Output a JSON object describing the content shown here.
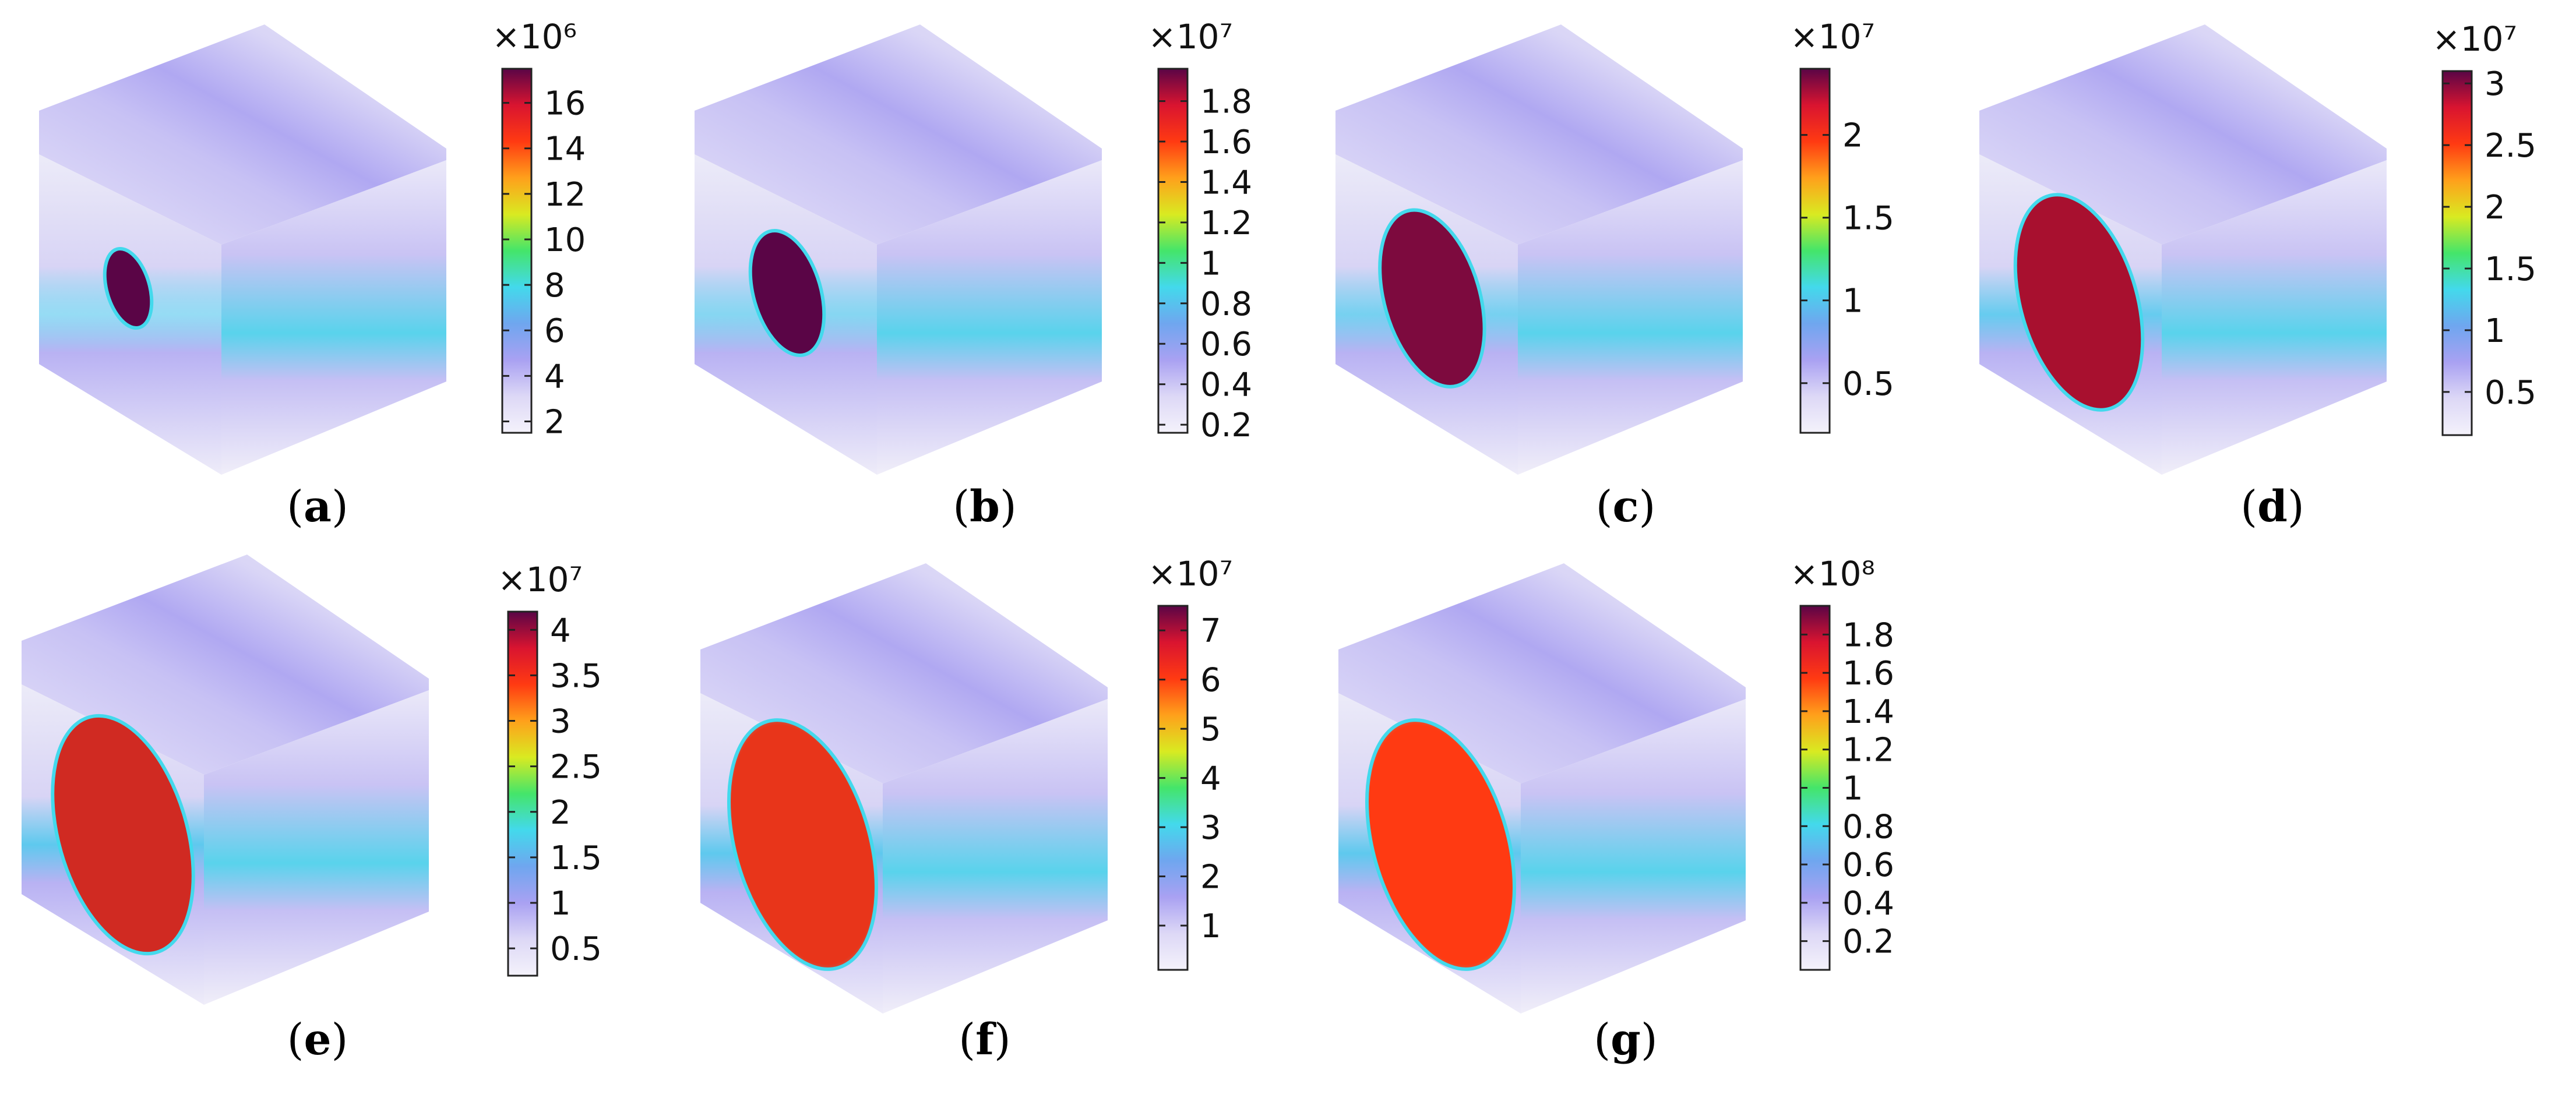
{
  "colormap": {
    "name": "rainbow-light",
    "stops": [
      "#f4f2fb",
      "#ddd8f6",
      "#a9a1f2",
      "#6fa6ef",
      "#43d9ec",
      "#44e56a",
      "#d9ea21",
      "#ffa01b",
      "#ff3a12",
      "#d91430",
      "#5a0546"
    ]
  },
  "panels": [
    {
      "label": "a",
      "colorbar": {
        "exponent": "×10⁶",
        "ticks": [
          "16",
          "14",
          "12",
          "10",
          "8",
          "6",
          "4",
          "2"
        ],
        "tick_values": [
          16,
          14,
          12,
          10,
          8,
          6,
          4,
          2
        ],
        "min": 1.5,
        "max": 17.5
      },
      "ellipse_scale": 0.35,
      "ellipse_fill": "#5a0546"
    },
    {
      "label": "b",
      "colorbar": {
        "exponent": "×10⁷",
        "ticks": [
          "1.8",
          "1.6",
          "1.4",
          "1.2",
          "1",
          "0.8",
          "0.6",
          "0.4",
          "0.2"
        ],
        "tick_values": [
          1.8,
          1.6,
          1.4,
          1.2,
          1,
          0.8,
          0.6,
          0.4,
          0.2
        ],
        "min": 0.16,
        "max": 1.96
      },
      "ellipse_scale": 0.55,
      "ellipse_fill": "#5a0546"
    },
    {
      "label": "c",
      "colorbar": {
        "exponent": "×10⁷",
        "ticks": [
          "2",
          "1.5",
          "1",
          "0.5"
        ],
        "tick_values": [
          2,
          1.5,
          1,
          0.5
        ],
        "min": 0.2,
        "max": 2.4
      },
      "ellipse_scale": 0.78,
      "ellipse_fill": "#7d0a3e"
    },
    {
      "label": "d",
      "colorbar": {
        "exponent": "×10⁷",
        "ticks": [
          "3",
          "2.5",
          "2",
          "1.5",
          "1",
          "0.5"
        ],
        "tick_values": [
          3,
          2.5,
          2,
          1.5,
          1,
          0.5
        ],
        "min": 0.15,
        "max": 3.1
      },
      "ellipse_scale": 0.95,
      "ellipse_fill": "#a8102f"
    },
    {
      "label": "e",
      "colorbar": {
        "exponent": "×10⁷",
        "ticks": [
          "4",
          "3.5",
          "3",
          "2.5",
          "2",
          "1.5",
          "1",
          "0.5"
        ],
        "tick_values": [
          4,
          3.5,
          3,
          2.5,
          2,
          1.5,
          1,
          0.5
        ],
        "min": 0.2,
        "max": 4.2
      },
      "ellipse_scale": 1.05,
      "ellipse_fill": "#d02a22"
    },
    {
      "label": "f",
      "colorbar": {
        "exponent": "×10⁷",
        "ticks": [
          "7",
          "6",
          "5",
          "4",
          "3",
          "2",
          "1"
        ],
        "tick_values": [
          7,
          6,
          5,
          4,
          3,
          2,
          1
        ],
        "min": 0.1,
        "max": 7.5
      },
      "ellipse_scale": 1.1,
      "ellipse_fill": "#e8351a"
    },
    {
      "label": "g",
      "colorbar": {
        "exponent": "×10⁸",
        "ticks": [
          "1.8",
          "1.6",
          "1.4",
          "1.2",
          "1",
          "0.8",
          "0.6",
          "0.4",
          "0.2"
        ],
        "tick_values": [
          1.8,
          1.6,
          1.4,
          1.2,
          1,
          0.8,
          0.6,
          0.4,
          0.2
        ],
        "min": 0.05,
        "max": 1.95
      },
      "ellipse_scale": 1.1,
      "ellipse_fill": "#ff3a12"
    }
  ]
}
